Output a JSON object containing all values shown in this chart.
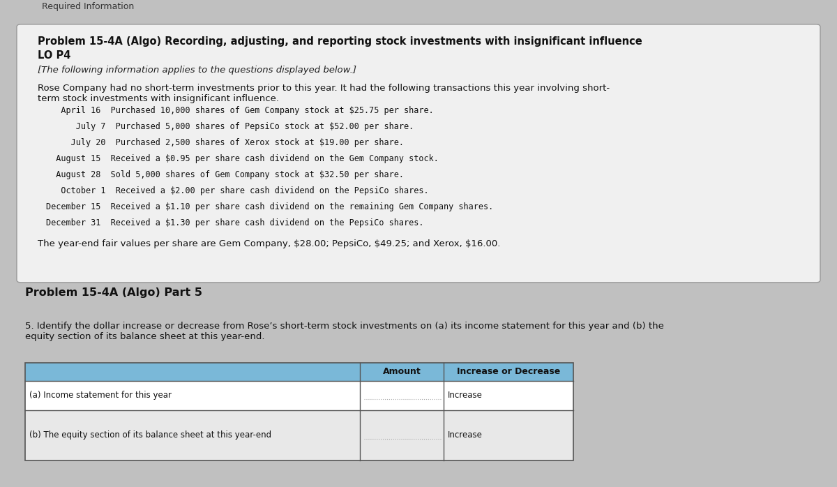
{
  "bg_color": "#c0c0c0",
  "top_bar_color": "#c0c0c0",
  "white_box_color": "#f0f0f0",
  "title_bold": "Problem 15-4A (Algo) Recording, adjusting, and reporting stock investments with insignificant influence",
  "title_line2": "LO P4",
  "italic_line": "[The following information applies to the questions displayed below.]",
  "intro_text": "Rose Company had no short-term investments prior to this year. It had the following transactions this year involving short-\nterm stock investments with insignificant influence.",
  "transactions": [
    "   April 16  Purchased 10,000 shares of Gem Company stock at $25.75 per share.",
    "      July 7  Purchased 5,000 shares of PepsiCo stock at $52.00 per share.",
    "     July 20  Purchased 2,500 shares of Xerox stock at $19.00 per share.",
    "  August 15  Received a $0.95 per share cash dividend on the Gem Company stock.",
    "  August 28  Sold 5,000 shares of Gem Company stock at $32.50 per share.",
    "   October 1  Received a $2.00 per share cash dividend on the PepsiCo shares.",
    "December 15  Received a $1.10 per share cash dividend on the remaining Gem Company shares.",
    "December 31  Received a $1.30 per share cash dividend on the PepsiCo shares."
  ],
  "fair_value_text": "The year-end fair values per share are Gem Company, $28.00; PepsiCo, $49.25; and Xerox, $16.00.",
  "cutoff_text": "Required Information",
  "part_title": "Problem 15-4A (Algo) Part 5",
  "question_text": "5. Identify the dollar increase or decrease from Rose’s short-term stock investments on (a) its income statement for this year and (b) the\nequity section of its balance sheet at this year-end.",
  "table_header_col2": "Amount",
  "table_header_col3": "Increase or Decrease",
  "table_row1_col1": "(a) Income statement for this year",
  "table_row1_col3": "Increase",
  "table_row2_col1": "(b) The equity section of its balance sheet at this year-end",
  "table_row2_col3": "Increase",
  "header_bg": "#7ab8d8",
  "table_border": "#555555",
  "row2_bg": "#e8e8e8"
}
